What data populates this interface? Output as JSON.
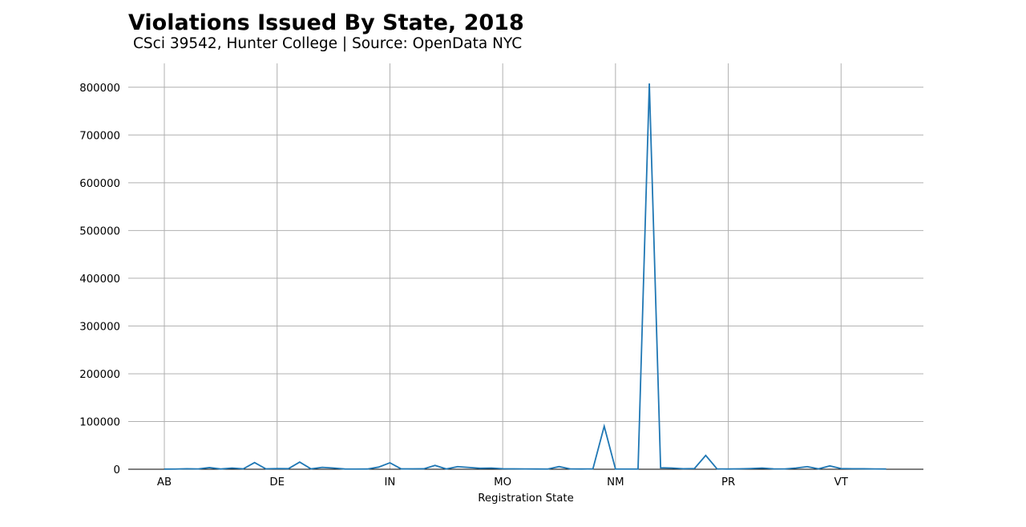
{
  "chart_data": {
    "type": "line",
    "title": "Violations Issued By State, 2018",
    "subtitle": "CSci 39542, Hunter College | Source: OpenData NYC",
    "xlabel": "Registration State",
    "ylabel": "",
    "x_tick_labels": [
      "AB",
      "DE",
      "IN",
      "MO",
      "NM",
      "PR",
      "VT"
    ],
    "x_tick_index": [
      0,
      10,
      20,
      30,
      40,
      50,
      60
    ],
    "y_ticks": [
      0,
      100000,
      200000,
      300000,
      400000,
      500000,
      600000,
      700000,
      800000
    ],
    "ylim": [
      0,
      850000
    ],
    "xlim": [
      -3.2,
      67.3
    ],
    "grid": true,
    "series": [
      {
        "color": "#1f77b4",
        "values": [
          300,
          400,
          1000,
          600,
          3500,
          500,
          2500,
          800,
          14000,
          800,
          1500,
          1200,
          15000,
          800,
          4000,
          2500,
          500,
          400,
          500,
          4500,
          13500,
          700,
          800,
          900,
          8000,
          600,
          5500,
          3800,
          2000,
          2500,
          1000,
          800,
          600,
          500,
          400,
          5500,
          600,
          500,
          800,
          90000,
          500,
          400,
          500,
          808000,
          3000,
          2500,
          1000,
          1500,
          29000,
          800,
          500,
          800,
          1500,
          2500,
          800,
          600,
          2500,
          5500,
          800,
          7000,
          1500,
          1000,
          900,
          600,
          500
        ]
      }
    ]
  }
}
